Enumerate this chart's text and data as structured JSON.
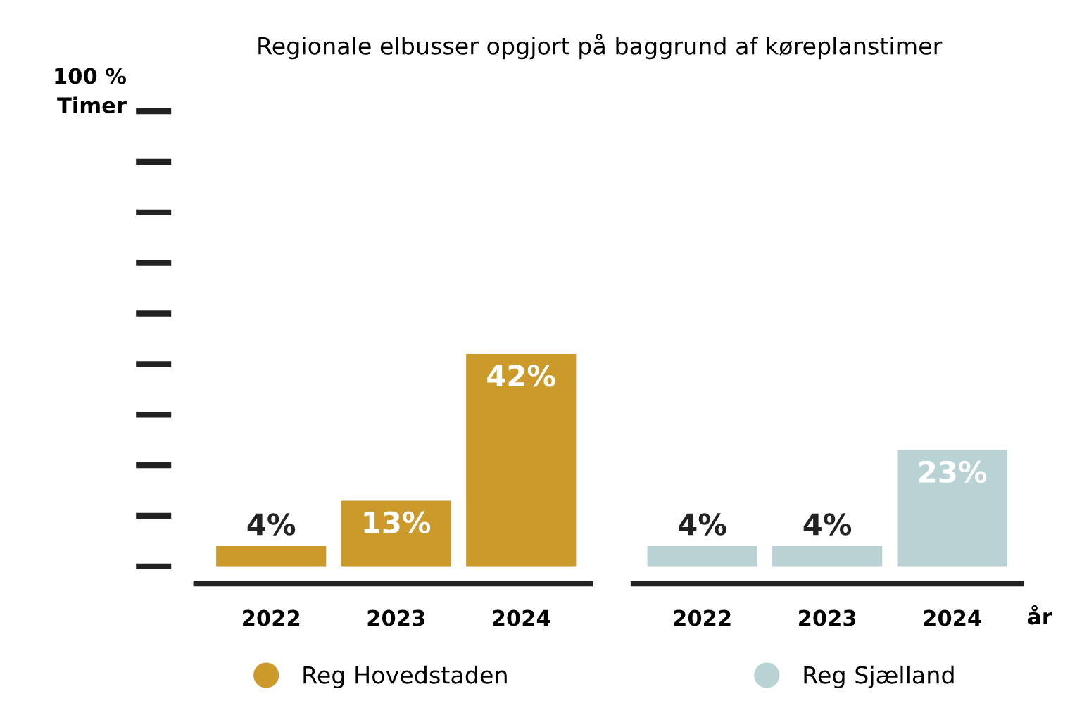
{
  "chart_data": {
    "type": "bar",
    "title": "Regionale elbusser opgjort på baggrund af køreplanstimer",
    "xlabel": "år",
    "categories": [
      "2022",
      "2023",
      "2024",
      "2022",
      "2023",
      "2024"
    ],
    "series": [
      {
        "name": "Reg Hovedstaden",
        "color": "#cc9a2b",
        "values": [
          4,
          13,
          42,
          null,
          null,
          null
        ],
        "value_labels": [
          "4%",
          "13%",
          "42%",
          null,
          null,
          null
        ]
      },
      {
        "name": "Reg Sjælland",
        "color": "#b9d3d4",
        "values": [
          null,
          null,
          null,
          4,
          4,
          23
        ],
        "value_labels": [
          null,
          null,
          null,
          "4%",
          "4%",
          "23%"
        ]
      }
    ],
    "annotations": [
      "100 %",
      "Timer"
    ],
    "grid": false,
    "legend": "bottom",
    "marker": "circle"
  }
}
